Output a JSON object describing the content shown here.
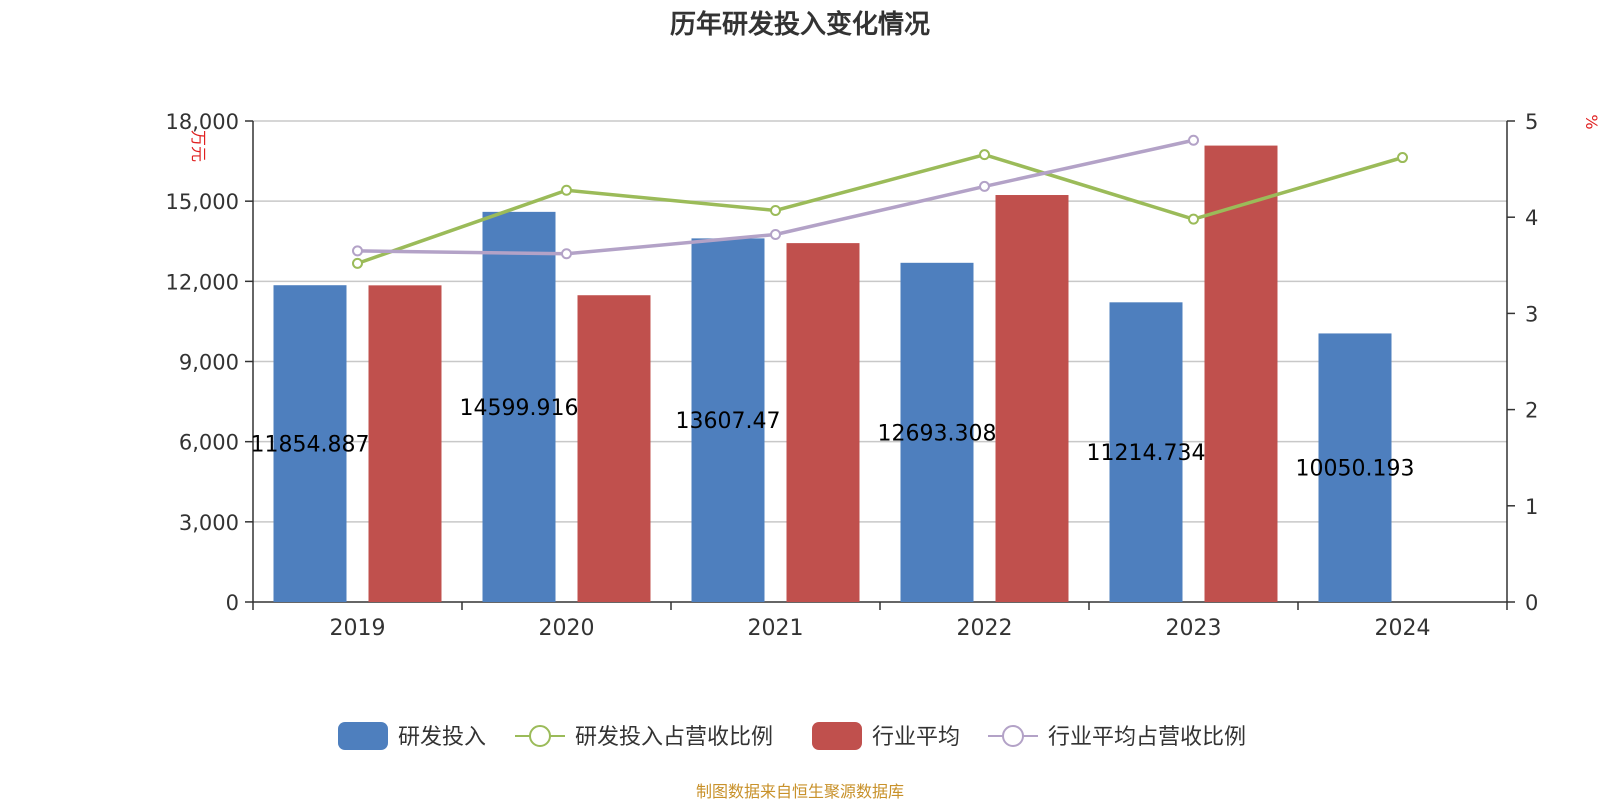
{
  "chart_data": {
    "type": "bar",
    "title": "历年研发投入变化情况",
    "categories": [
      "2019",
      "2020",
      "2021",
      "2022",
      "2023",
      "2024"
    ],
    "series": [
      {
        "name": "研发投入",
        "kind": "bar",
        "axis": "left",
        "color": "#4e7fbe",
        "values": [
          11854.887,
          14599.916,
          13607.47,
          12693.308,
          11214.734,
          10050.193
        ],
        "labels": [
          "11854.887",
          "14599.916",
          "13607.47",
          "12693.308",
          "11214.734",
          "10050.193"
        ]
      },
      {
        "name": "研发投入占营收比例",
        "kind": "line",
        "axis": "right",
        "color": "#9bbb59",
        "values": [
          3.52,
          4.28,
          4.07,
          4.65,
          3.98,
          4.62
        ]
      },
      {
        "name": "行业平均",
        "kind": "bar",
        "axis": "left",
        "color": "#c0504d",
        "values": [
          11850,
          11480,
          13430,
          15230,
          17080,
          null
        ]
      },
      {
        "name": "行业平均占营收比例",
        "kind": "line",
        "axis": "right",
        "color": "#b3a2c7",
        "values": [
          3.65,
          3.62,
          3.82,
          4.32,
          4.8,
          null
        ]
      }
    ],
    "y_left": {
      "label": "万元",
      "ylim": [
        0,
        18000
      ],
      "ticks": [
        "0",
        "3,000",
        "6,000",
        "9,000",
        "12,000",
        "15,000",
        "18,000"
      ]
    },
    "y_right": {
      "label": "%",
      "ylim": [
        0,
        5
      ],
      "ticks": [
        "0",
        "1",
        "2",
        "3",
        "4",
        "5"
      ]
    },
    "grid": true,
    "legend": "bottom"
  },
  "source": "制图数据来自恒生聚源数据库"
}
